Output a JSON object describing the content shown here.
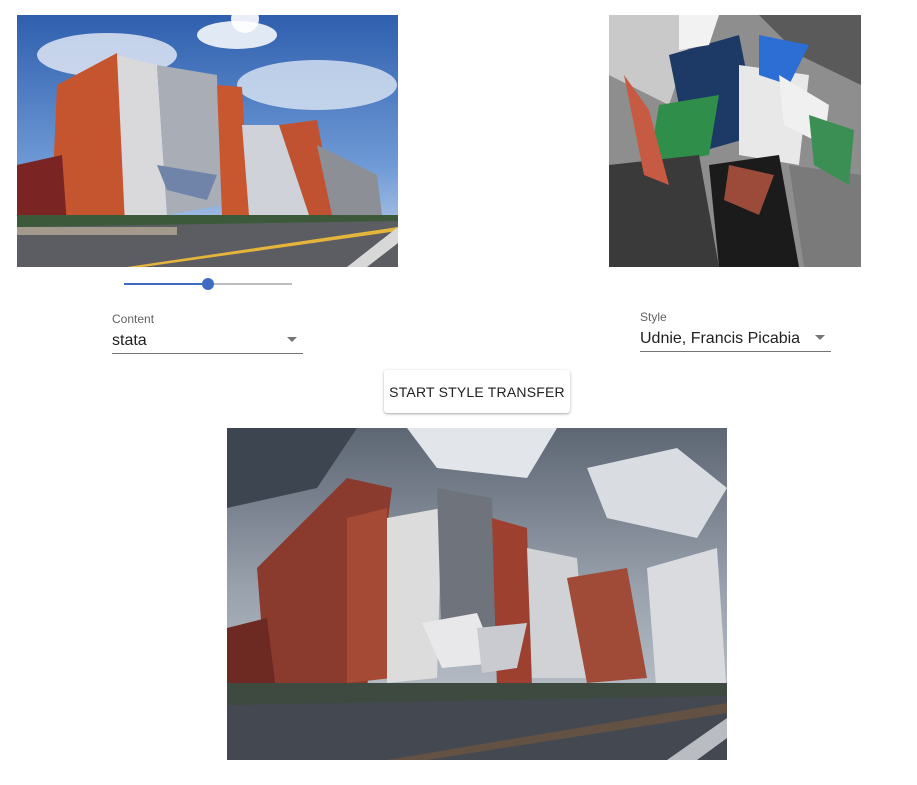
{
  "slider": {
    "value": 0.5
  },
  "content_select": {
    "label": "Content",
    "value": "stata"
  },
  "style_select": {
    "label": "Style",
    "value": "Udnie, Francis Picabia"
  },
  "transfer_button": {
    "label": "START STYLE TRANSFER"
  },
  "icons": {
    "dropdown": "chevron-down-icon"
  },
  "colors": {
    "accent": "#3f6bc4",
    "sky": "#3d6fb8",
    "brick": "#c5552e",
    "road": "#5b5d63"
  }
}
